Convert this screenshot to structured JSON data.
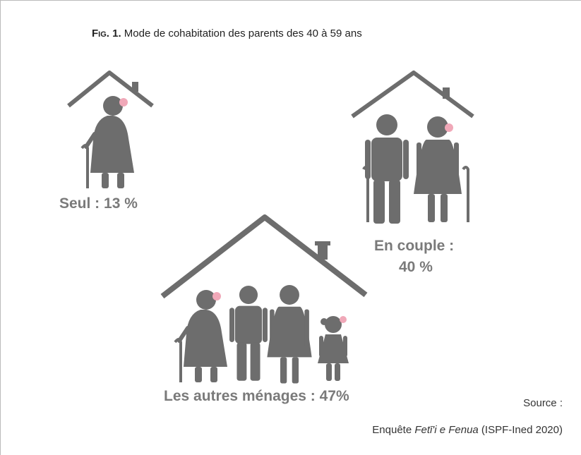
{
  "figure": {
    "label": "Fig. 1.",
    "title": "Mode de cohabitation des parents des 40 à 59 ans"
  },
  "groups": [
    {
      "lines": [
        "Seul : 13 %"
      ]
    },
    {
      "lines": [
        "En couple :",
        "40 %"
      ]
    },
    {
      "lines": [
        "Les autres ménages : 47%"
      ]
    }
  ],
  "source": {
    "label": "Source :",
    "prefix": "Enquête ",
    "name": "Fetī'i e Fenua",
    "suffix": " (ISPF-Ined 2020)"
  }
}
